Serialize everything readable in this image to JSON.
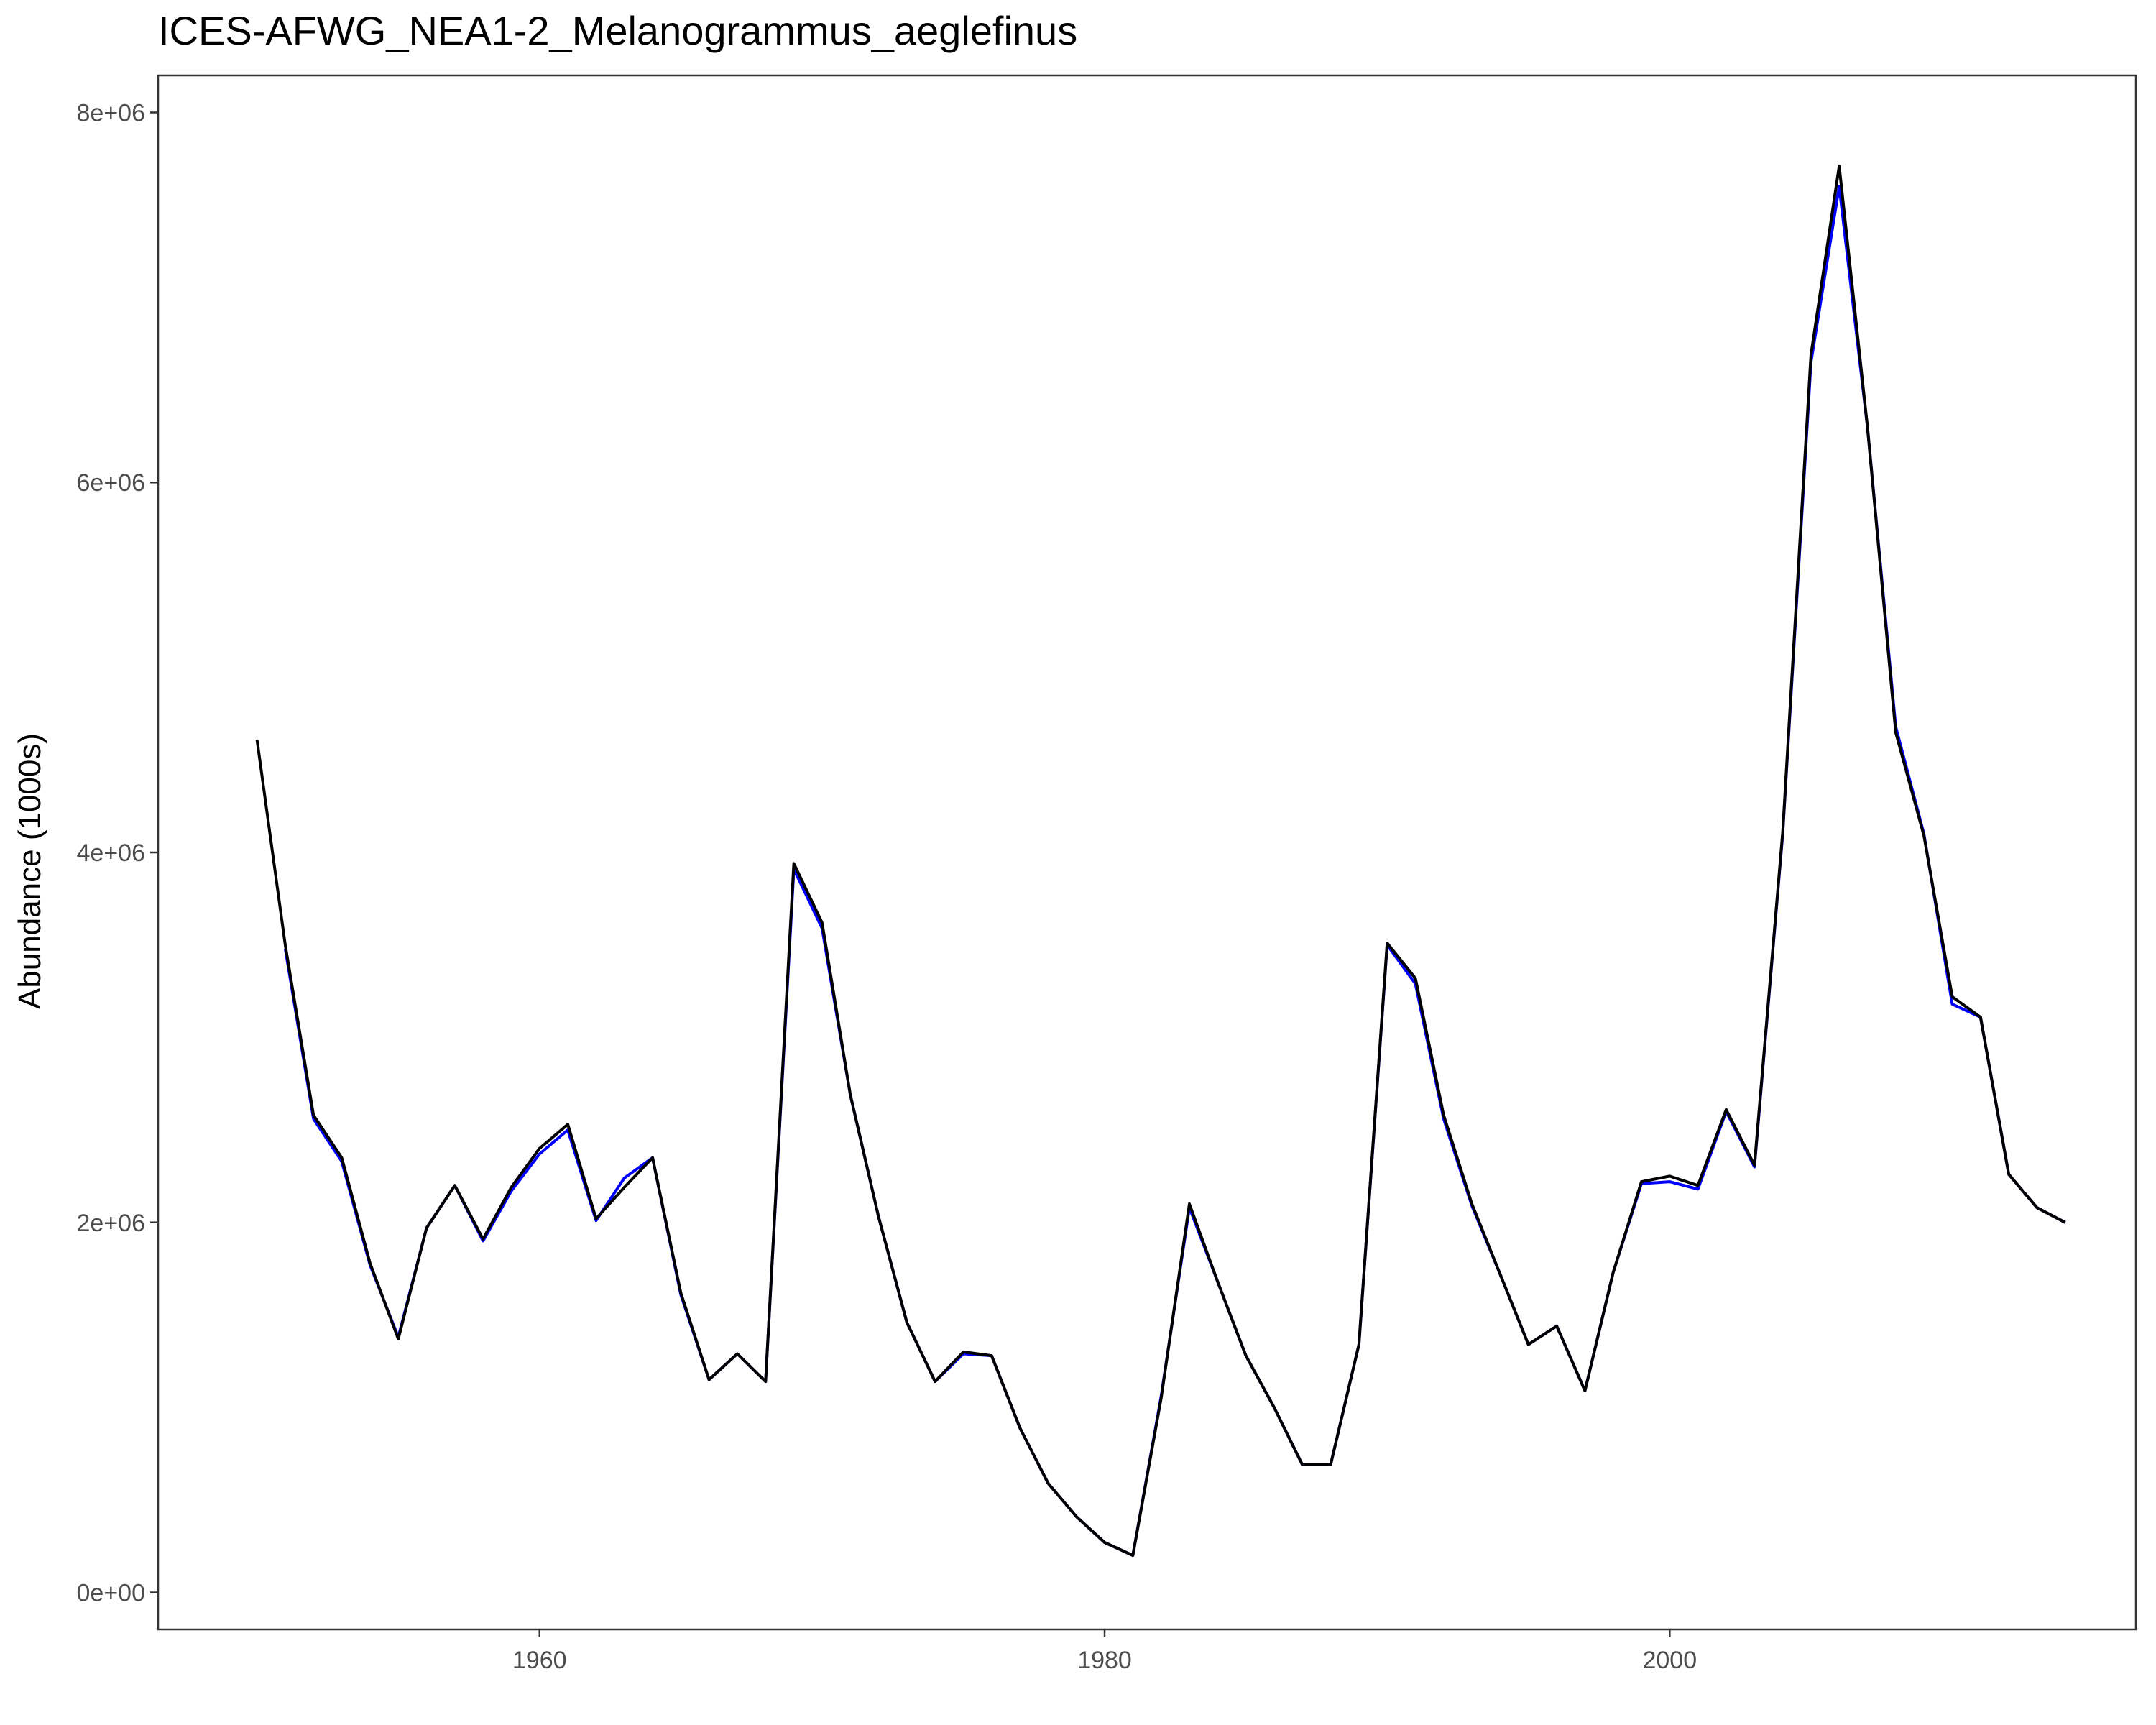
{
  "chart_data": {
    "type": "line",
    "title": "ICES-AFWG_NEA1-2_Melanogrammus_aeglefinus",
    "xlabel": "",
    "ylabel": "Abundance (1000s)",
    "xlim": [
      1946.5,
      2016.5
    ],
    "ylim": [
      -200000,
      8200000
    ],
    "x_ticks": [
      1960,
      1980,
      2000
    ],
    "y_ticks": [
      0,
      2000000,
      4000000,
      6000000,
      8000000
    ],
    "y_tick_labels": [
      "0e+00",
      "2e+06",
      "4e+06",
      "6e+06",
      "8e+06"
    ],
    "x_tick_labels": [
      "1960",
      "1980",
      "2000"
    ],
    "grid": false,
    "series": [
      {
        "name": "blue",
        "color": "#0000ff",
        "x": [
          1951,
          1952,
          1953,
          1954,
          1955,
          1956,
          1957,
          1958,
          1959,
          1960,
          1961,
          1962,
          1963,
          1964,
          1965,
          1966,
          1967,
          1968,
          1969,
          1970,
          1971,
          1972,
          1973,
          1974,
          1975,
          1976,
          1977,
          1978,
          1979,
          1980,
          1981,
          1982,
          1983,
          1984,
          1985,
          1986,
          1987,
          1988,
          1989,
          1990,
          1991,
          1992,
          1993,
          1994,
          1995,
          1996,
          1997,
          1998,
          1999,
          2000,
          2001,
          2002,
          2003,
          2004,
          2005,
          2006,
          2007,
          2008,
          2009,
          2010,
          2011,
          2012,
          2013,
          2014
        ],
        "values": [
          3480000,
          2560000,
          2330000,
          1770000,
          1380000,
          1970000,
          2200000,
          1900000,
          2170000,
          2370000,
          2500000,
          2010000,
          2240000,
          2350000,
          1610000,
          1150000,
          1290000,
          1140000,
          3910000,
          3590000,
          2690000,
          2030000,
          1460000,
          1140000,
          1290000,
          1280000,
          890000,
          590000,
          410000,
          270000,
          200000,
          1060000,
          2080000,
          1680000,
          1280000,
          1000000,
          690000,
          690000,
          1340000,
          3500000,
          3290000,
          2560000,
          2090000,
          1720000,
          1340000,
          1440000,
          1090000,
          1730000,
          2210000,
          2220000,
          2180000,
          2600000,
          2300000,
          4100000,
          6650000,
          7600000,
          6300000,
          4680000,
          4100000,
          3180000,
          3110000,
          2260000,
          2080000,
          2000000
        ]
      },
      {
        "name": "black",
        "color": "#000000",
        "x": [
          1950,
          1951,
          1952,
          1953,
          1954,
          1955,
          1956,
          1957,
          1958,
          1959,
          1960,
          1961,
          1962,
          1963,
          1964,
          1965,
          1966,
          1967,
          1968,
          1969,
          1970,
          1971,
          1972,
          1973,
          1974,
          1975,
          1976,
          1977,
          1978,
          1979,
          1980,
          1981,
          1982,
          1983,
          1984,
          1985,
          1986,
          1987,
          1988,
          1989,
          1990,
          1991,
          1992,
          1993,
          1994,
          1995,
          1996,
          1997,
          1998,
          1999,
          2000,
          2001,
          2002,
          2003,
          2004,
          2005,
          2006,
          2007,
          2008,
          2009,
          2010,
          2011,
          2012,
          2013,
          2014
        ],
        "values": [
          4610000,
          3500000,
          2580000,
          2350000,
          1780000,
          1370000,
          1970000,
          2200000,
          1910000,
          2190000,
          2400000,
          2530000,
          2020000,
          2190000,
          2350000,
          1620000,
          1150000,
          1290000,
          1140000,
          3940000,
          3620000,
          2690000,
          2030000,
          1460000,
          1140000,
          1300000,
          1280000,
          890000,
          590000,
          410000,
          270000,
          200000,
          1050000,
          2100000,
          1680000,
          1280000,
          1000000,
          690000,
          690000,
          1340000,
          3510000,
          3320000,
          2580000,
          2100000,
          1720000,
          1340000,
          1440000,
          1090000,
          1730000,
          2220000,
          2250000,
          2200000,
          2610000,
          2310000,
          4110000,
          6690000,
          7710000,
          6300000,
          4650000,
          4090000,
          3220000,
          3110000,
          2260000,
          2080000,
          2000000
        ]
      }
    ]
  }
}
